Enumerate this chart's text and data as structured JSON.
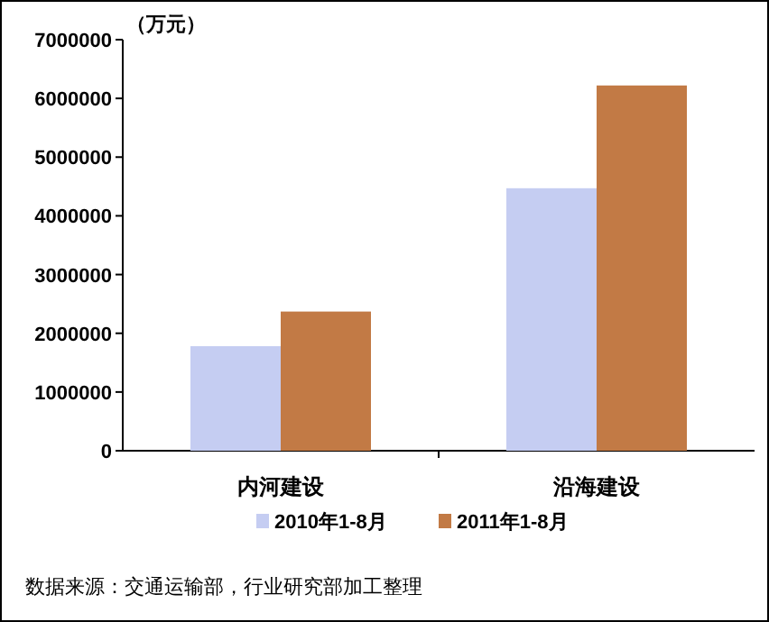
{
  "chart_data": {
    "type": "bar",
    "ylabel": "（万元）",
    "categories": [
      "内河建设",
      "沿海建设"
    ],
    "series": [
      {
        "name": "2010年1-8月",
        "color": "#c5cdf2",
        "values": [
          1780000,
          4470000
        ]
      },
      {
        "name": "2011年1-8月",
        "color": "#c27a45",
        "values": [
          2370000,
          6220000
        ]
      }
    ],
    "ylim": [
      0,
      7000000
    ],
    "yticks": [
      0,
      1000000,
      2000000,
      3000000,
      4000000,
      5000000,
      6000000,
      7000000
    ],
    "grid": false,
    "legend": "bottom",
    "annotations": [
      "数据来源：交通运输部，行业研究部加工整理"
    ]
  }
}
